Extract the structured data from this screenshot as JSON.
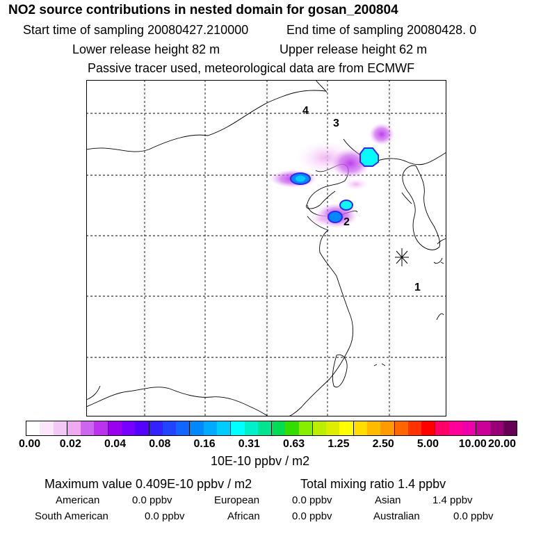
{
  "header": {
    "title": "NO2 source contributions in nested domain for gosan_200804",
    "start_label": "Start time of sampling 20080427.210000",
    "end_label": "End time of sampling 20080428.     0",
    "lower_release": "Lower release height   82 m",
    "upper_release": "Upper release height   62 m",
    "tracer_note": "Passive tracer used, meteorological data are from ECMWF"
  },
  "map": {
    "region_labels": [
      "1",
      "2",
      "3",
      "4"
    ],
    "station_marker": "star-marker"
  },
  "legend": {
    "colors": [
      "#ffffff",
      "#fbe6fb",
      "#f4c8f6",
      "#eeaaf2",
      "#cc66ee",
      "#bb33ee",
      "#9900ee",
      "#7700ff",
      "#5500ff",
      "#3322ff",
      "#2244ff",
      "#1166ff",
      "#0088ff",
      "#00aaff",
      "#00ccff",
      "#00ffff",
      "#00f0cc",
      "#00e690",
      "#00dd55",
      "#33dd00",
      "#88ee00",
      "#bbee00",
      "#ddee00",
      "#ffff00",
      "#ffdd00",
      "#ffbb00",
      "#ff9900",
      "#ff6600",
      "#ff3300",
      "#ff0000",
      "#ff0066",
      "#ff0099",
      "#ee00aa",
      "#cc0099",
      "#990077",
      "#660055"
    ],
    "ticks": [
      "0.00",
      "0.02",
      "0.04",
      "0.08",
      "0.16",
      "0.31",
      "0.63",
      "1.25",
      "2.50",
      "5.00",
      "10.00",
      "20.00"
    ],
    "unit": "10E-10 ppbv / m2"
  },
  "summary": {
    "max_value": "Maximum value  0.409E-10 ppbv / m2",
    "total_mixing": "Total mixing ratio        1.4 ppbv",
    "american_label": "American",
    "american_value": "0.0 ppbv",
    "european_label": "European",
    "european_value": "0.0 ppbv",
    "asian_label": "Asian",
    "asian_value": "1.4 ppbv",
    "south_american_label": "South American",
    "south_american_value": "0.0 ppbv",
    "african_label": "African",
    "african_value": "0.0 ppbv",
    "australian_label": "Australian",
    "australian_value": "0.0 ppbv"
  }
}
